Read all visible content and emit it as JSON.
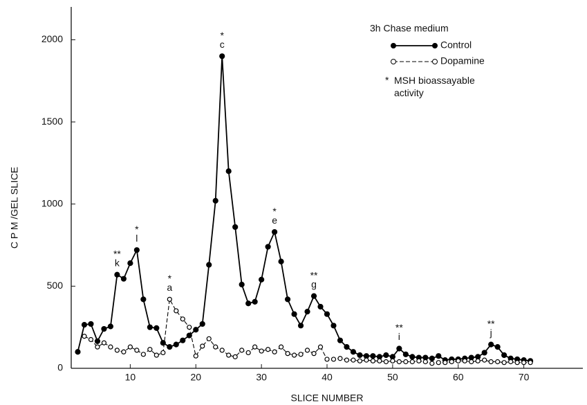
{
  "chart_data": {
    "type": "line",
    "xlabel": "SLICE NUMBER",
    "ylabel": "C P M /GEL SLICE",
    "legend_title": "3h  Chase medium",
    "legend_position": "upper right",
    "note_marker": "*",
    "note": "MSH bioassayable activity",
    "xlim": [
      1,
      79
    ],
    "xticks": [
      10,
      20,
      30,
      40,
      50,
      60,
      70
    ],
    "ylim": [
      0,
      2200
    ],
    "yticks": [
      0,
      500,
      1000,
      1500,
      2000
    ],
    "series": [
      {
        "name": "Control",
        "color": "#000000",
        "style": "solid",
        "marker": "filled",
        "x": [
          2,
          3,
          4,
          5,
          6,
          7,
          8,
          9,
          10,
          11,
          12,
          13,
          14,
          15,
          16,
          17,
          18,
          19,
          20,
          21,
          22,
          23,
          24,
          25,
          26,
          27,
          28,
          29,
          30,
          31,
          32,
          33,
          34,
          35,
          36,
          37,
          38,
          39,
          40,
          41,
          42,
          43,
          44,
          45,
          46,
          47,
          48,
          49,
          50,
          51,
          52,
          53,
          54,
          55,
          56,
          57,
          58,
          59,
          60,
          61,
          62,
          63,
          64,
          65,
          66,
          67,
          68,
          69,
          70,
          71
        ],
        "values": [
          100,
          265,
          270,
          165,
          240,
          255,
          570,
          545,
          640,
          720,
          420,
          250,
          245,
          155,
          130,
          145,
          170,
          200,
          235,
          270,
          630,
          1020,
          1900,
          1200,
          860,
          510,
          395,
          405,
          540,
          740,
          830,
          650,
          420,
          330,
          260,
          345,
          440,
          375,
          330,
          260,
          170,
          130,
          100,
          80,
          75,
          75,
          70,
          80,
          70,
          120,
          85,
          70,
          65,
          65,
          60,
          75,
          50,
          55,
          55,
          60,
          65,
          70,
          95,
          145,
          130,
          80,
          60,
          55,
          50,
          45
        ],
        "annotations": [
          {
            "text": "k",
            "marker": "**",
            "x": 8
          },
          {
            "text": "l",
            "marker": "*",
            "x": 11
          },
          {
            "text": "c",
            "marker": "*",
            "x": 24
          },
          {
            "text": "e",
            "marker": "*",
            "x": 32
          },
          {
            "text": "g",
            "marker": "**",
            "x": 38
          },
          {
            "text": "i",
            "marker": "**",
            "x": 51
          },
          {
            "text": "j",
            "marker": "**",
            "x": 65
          }
        ]
      },
      {
        "name": "Dopamine",
        "color": "#000000",
        "style": "dashed",
        "marker": "open",
        "x": [
          3,
          4,
          5,
          6,
          7,
          8,
          9,
          10,
          11,
          12,
          13,
          14,
          15,
          16,
          17,
          18,
          19,
          20,
          21,
          22,
          23,
          24,
          25,
          26,
          27,
          28,
          29,
          30,
          31,
          32,
          33,
          34,
          35,
          36,
          37,
          38,
          39,
          40,
          41,
          42,
          43,
          44,
          45,
          46,
          47,
          48,
          49,
          50,
          51,
          52,
          53,
          54,
          55,
          56,
          57,
          58,
          59,
          60,
          61,
          62,
          63,
          64,
          65,
          66,
          67,
          68,
          69,
          70,
          71
        ],
        "values": [
          195,
          175,
          130,
          155,
          130,
          110,
          100,
          130,
          110,
          85,
          115,
          80,
          95,
          420,
          350,
          300,
          250,
          75,
          135,
          180,
          130,
          110,
          80,
          70,
          110,
          95,
          130,
          105,
          115,
          100,
          130,
          90,
          80,
          85,
          110,
          90,
          130,
          55,
          55,
          60,
          50,
          50,
          45,
          50,
          45,
          45,
          40,
          45,
          40,
          40,
          40,
          45,
          40,
          30,
          35,
          35,
          40,
          45,
          45,
          40,
          45,
          50,
          40,
          40,
          35,
          40,
          35,
          35,
          35
        ],
        "annotations": [
          {
            "text": "a",
            "marker": "*",
            "x": 16
          }
        ]
      }
    ]
  }
}
